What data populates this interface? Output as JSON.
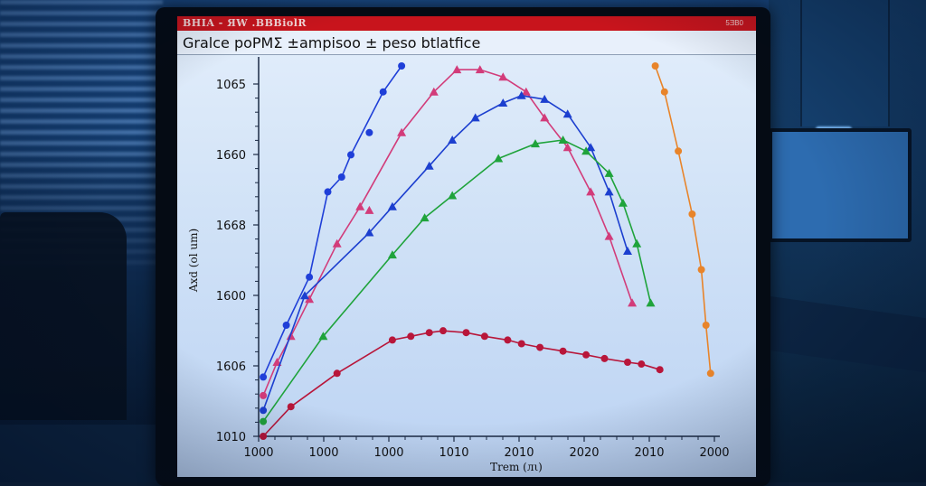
{
  "scene": {
    "description": "Photo of a lab monitor in a dim blue-lit room displaying a scientific line chart"
  },
  "window": {
    "app_title": "BHIA - ЯW .BBBiolR",
    "meta_label": "5ƎB0",
    "titlebar_color": "#c8141c"
  },
  "chart_data": {
    "type": "line",
    "title": "Gralce poPMΣ ±ampisoo ± peso btlatfice",
    "xlabel": "Trem (лι)",
    "ylabel": "Axd (ol um)",
    "x_tick_labels": [
      "1000",
      "1000",
      "1000",
      "1010",
      "2010",
      "2020",
      "2010",
      "2000"
    ],
    "y_tick_labels": [
      "1010",
      "1606",
      "1600",
      "1668",
      "1660",
      "1065"
    ],
    "x_range": [
      0,
      100
    ],
    "y_range": [
      0,
      100
    ],
    "grid": false,
    "legend": "none",
    "series": [
      {
        "name": "blue-circles",
        "color": "#1f3fd8",
        "marker": "circle",
        "x": [
          1,
          6,
          11,
          15,
          18,
          20,
          27,
          31
        ],
        "y": [
          16,
          30,
          43,
          66,
          70,
          76,
          93,
          100
        ],
        "outliers": [
          {
            "x": 24,
            "y": 82
          }
        ]
      },
      {
        "name": "orange-magenta-triangles",
        "color": "#d23c7a",
        "marker": "triangle",
        "x": [
          1,
          4,
          7,
          11,
          17,
          22,
          31,
          38,
          43,
          48,
          53,
          58,
          62,
          67,
          72,
          76,
          81
        ],
        "y": [
          11,
          20,
          27,
          37,
          52,
          62,
          82,
          93,
          99,
          99,
          97,
          93,
          86,
          78,
          66,
          54,
          36
        ],
        "outliers": [
          {
            "x": 24,
            "y": 61
          }
        ]
      },
      {
        "name": "blue-triangles",
        "color": "#1c3fcf",
        "marker": "triangle",
        "x": [
          1,
          10,
          24,
          29,
          37,
          42,
          47,
          53,
          57,
          62,
          67,
          72,
          76,
          80
        ],
        "y": [
          7,
          38,
          55,
          62,
          73,
          80,
          86,
          90,
          92,
          91,
          87,
          78,
          66,
          50
        ]
      },
      {
        "name": "green-triangles",
        "color": "#1fa33b",
        "marker": "triangle",
        "x": [
          1,
          14,
          29,
          36,
          42,
          52,
          60,
          66,
          71,
          76,
          79,
          82,
          85
        ],
        "y": [
          4,
          27,
          49,
          59,
          65,
          75,
          79,
          80,
          77,
          71,
          63,
          52,
          36
        ]
      },
      {
        "name": "crimson-circles",
        "color": "#b8163a",
        "marker": "circle",
        "x": [
          1,
          7,
          17,
          29,
          33,
          37,
          40,
          45,
          49,
          54,
          57,
          61,
          66,
          71,
          75,
          80,
          83,
          87
        ],
        "y": [
          0,
          8,
          17,
          26,
          27,
          28,
          28.5,
          28,
          27,
          26,
          25,
          24,
          23,
          22,
          21,
          20,
          19.5,
          18
        ]
      },
      {
        "name": "orange-steep",
        "color": "#e8842a",
        "marker": "circle",
        "x": [
          86,
          88,
          91,
          94,
          96,
          97,
          98
        ],
        "y": [
          100,
          93,
          77,
          60,
          45,
          30,
          17
        ]
      }
    ]
  }
}
